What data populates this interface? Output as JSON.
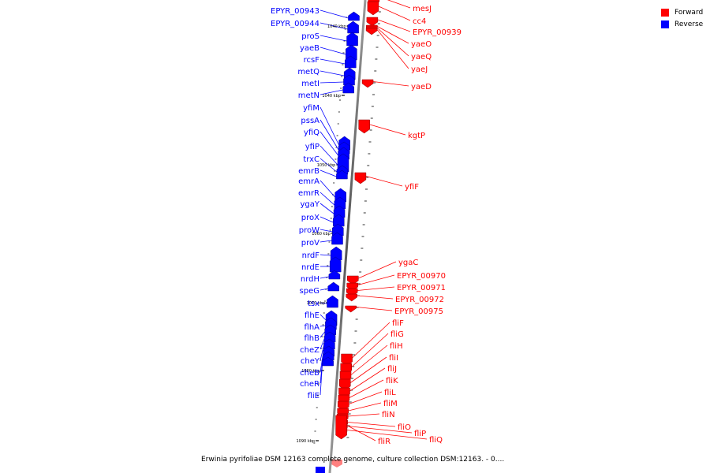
{
  "legend": {
    "forward": {
      "label": "Forward",
      "color": "#ff0000"
    },
    "reverse": {
      "label": "Reverse",
      "color": "#0000ff"
    }
  },
  "caption": "Erwinia pyrifoliae DSM 12163 complete genome, culture collection DSM:12163. - 0....",
  "tick_labels": [
    "1040 kbp",
    "1040 kbp",
    "1050 kbp",
    "1060 kbp",
    "1070 kbp",
    "1080 kbp",
    "1090 kbp"
  ],
  "reverse_genes": [
    "EPYR_00943",
    "EPYR_00944",
    "proS",
    "yaeB",
    "rcsF",
    "metQ",
    "metI",
    "metN",
    "yfiM",
    "pssA",
    "yfiQ",
    "yfiP",
    "trxC",
    "emrB",
    "emrA",
    "emrR",
    "ygaY",
    "proX",
    "proW",
    "proV",
    "nrdF",
    "nrdE",
    "nrdH",
    "speG",
    "tsx",
    "flhE",
    "flhA",
    "flhB",
    "cheZ",
    "cheY",
    "cheB",
    "cheR",
    "fliE"
  ],
  "forward_genes": [
    "mesJ",
    "cc4",
    "EPYR_00939",
    "yaeO",
    "yaeQ",
    "yaeJ",
    "yaeD",
    "kgtP",
    "yfiF",
    "ygaC",
    "EPYR_00970",
    "EPYR_00971",
    "EPYR_00972",
    "EPYR_00975",
    "fliF",
    "fliG",
    "fliH",
    "fliI",
    "fliJ",
    "fliK",
    "fliL",
    "fliM",
    "fliN",
    "fliO",
    "fliP",
    "fliQ",
    "fliR"
  ]
}
